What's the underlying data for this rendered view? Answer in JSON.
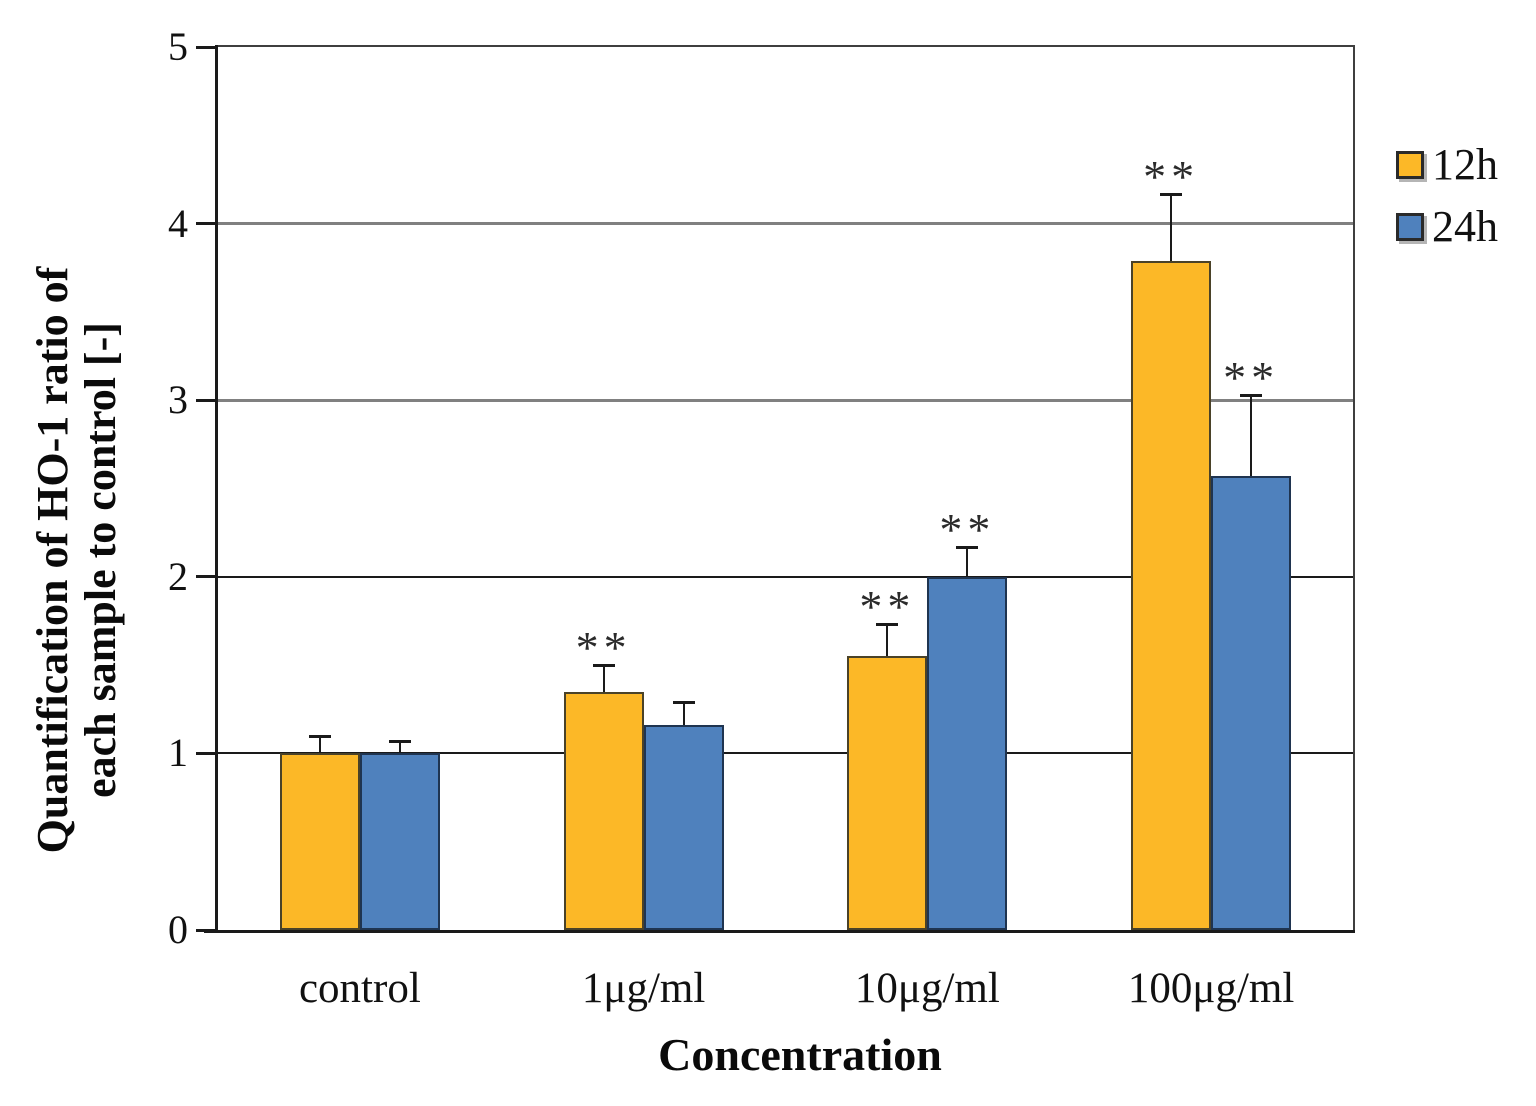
{
  "chart_data": {
    "type": "bar",
    "title": "",
    "xlabel": "Concentration",
    "ylabel_lines": [
      "Quantification of HO-1 ratio of",
      "each sample to control [-]"
    ],
    "categories": [
      "control",
      "1μg/ml",
      "10μg/ml",
      "100μg/ml"
    ],
    "series": [
      {
        "name": "12h",
        "color": "#FCB827",
        "border_color": "#4a4228",
        "values": [
          1.0,
          1.35,
          1.55,
          3.79
        ],
        "errors_plus": [
          0.1,
          0.15,
          0.18,
          0.38
        ],
        "significance": [
          "",
          "**",
          "**",
          "**"
        ]
      },
      {
        "name": "24h",
        "color": "#4F81BD",
        "border_color": "#1f3450",
        "values": [
          1.0,
          1.16,
          2.0,
          2.57
        ],
        "errors_plus": [
          0.07,
          0.13,
          0.17,
          0.46
        ],
        "significance": [
          "",
          "",
          "**",
          "**"
        ]
      }
    ],
    "ylim": [
      0,
      5
    ],
    "y_ticks": [
      "0",
      "1",
      "2",
      "3",
      "4",
      "5"
    ],
    "gridlines": [
      {
        "value": 1,
        "color": "#1a1a1a",
        "width": 2
      },
      {
        "value": 2,
        "color": "#1a1a1a",
        "width": 2
      },
      {
        "value": 3,
        "color": "#808080",
        "width": 3
      },
      {
        "value": 4,
        "color": "#808080",
        "width": 3
      }
    ],
    "grid": true,
    "legend_position": "right",
    "significance_symbol_color": "#2b2b2b"
  }
}
